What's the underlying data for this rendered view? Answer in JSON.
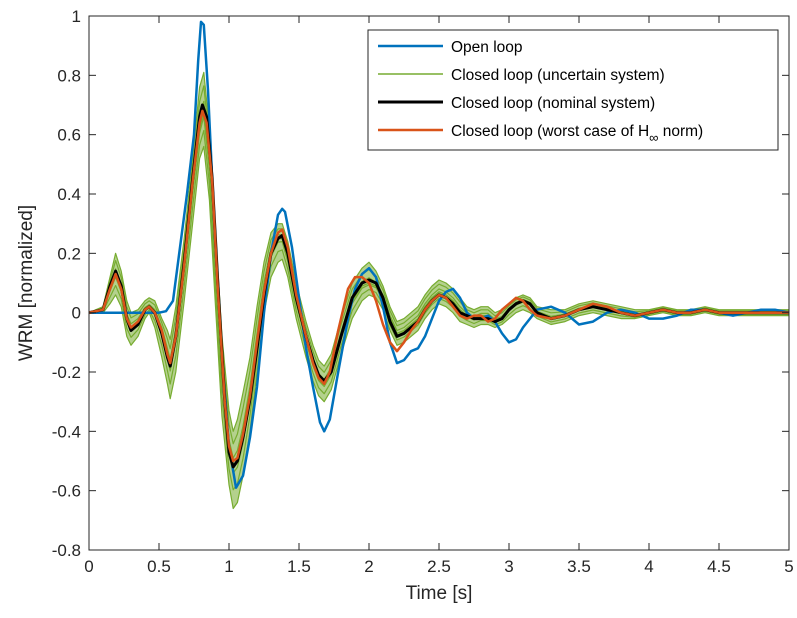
{
  "chart_data": {
    "type": "line",
    "title": "",
    "xlabel": "Time [s]",
    "ylabel": "WRM [normalized]",
    "xlim": [
      0,
      5
    ],
    "ylim": [
      -0.8,
      1
    ],
    "xticks": [
      "0",
      "0.5",
      "1",
      "1.5",
      "2",
      "2.5",
      "3",
      "3.5",
      "4",
      "4.5",
      "5"
    ],
    "yticks": [
      "-0.8",
      "-0.6",
      "-0.4",
      "-0.2",
      "0",
      "0.2",
      "0.4",
      "0.6",
      "0.8",
      "1"
    ],
    "grid": false,
    "legend_position": "top-right",
    "legend": [
      {
        "label": "Open loop",
        "color": "#0072BD",
        "width": 2.5
      },
      {
        "label": "Closed loop (uncertain system)",
        "color": "#77AC30",
        "width": 1.6
      },
      {
        "label": "Closed loop (nominal system)",
        "color": "#000000",
        "width": 3
      },
      {
        "label": "Closed loop (worst case of H",
        "sub": "∞",
        "suffix": " norm)",
        "color": "#D95319",
        "width": 2.5
      }
    ],
    "series": [
      {
        "name": "Open loop",
        "color": "#0072BD",
        "x": [
          0,
          0.3,
          0.5,
          0.55,
          0.6,
          0.65,
          0.7,
          0.75,
          0.78,
          0.8,
          0.82,
          0.85,
          0.88,
          0.9,
          0.95,
          1.0,
          1.05,
          1.1,
          1.15,
          1.2,
          1.25,
          1.3,
          1.35,
          1.38,
          1.4,
          1.45,
          1.5,
          1.55,
          1.6,
          1.65,
          1.68,
          1.72,
          1.78,
          1.85,
          1.9,
          1.95,
          2.0,
          2.05,
          2.1,
          2.15,
          2.2,
          2.25,
          2.3,
          2.35,
          2.4,
          2.45,
          2.5,
          2.55,
          2.6,
          2.65,
          2.7,
          2.75,
          2.8,
          2.85,
          2.9,
          2.95,
          3.0,
          3.05,
          3.1,
          3.15,
          3.2,
          3.3,
          3.4,
          3.5,
          3.6,
          3.7,
          3.8,
          3.9,
          4.0,
          4.1,
          4.2,
          4.3,
          4.4,
          4.5,
          4.6,
          4.7,
          4.8,
          4.9,
          5.0
        ],
        "y": [
          0,
          0,
          0,
          0.005,
          0.04,
          0.22,
          0.4,
          0.6,
          0.85,
          0.98,
          0.97,
          0.75,
          0.45,
          0.25,
          -0.15,
          -0.45,
          -0.59,
          -0.55,
          -0.42,
          -0.25,
          0,
          0.2,
          0.33,
          0.35,
          0.34,
          0.22,
          0.05,
          -0.12,
          -0.25,
          -0.37,
          -0.4,
          -0.36,
          -0.2,
          -0.02,
          0.08,
          0.13,
          0.15,
          0.12,
          0.02,
          -0.1,
          -0.17,
          -0.16,
          -0.13,
          -0.12,
          -0.08,
          -0.02,
          0.04,
          0.07,
          0.08,
          0.05,
          0,
          -0.02,
          -0.02,
          -0.01,
          -0.03,
          -0.07,
          -0.1,
          -0.09,
          -0.05,
          -0.02,
          0.01,
          0.02,
          0,
          -0.04,
          -0.03,
          0,
          0.01,
          0.0,
          -0.02,
          -0.02,
          -0.01,
          0.01,
          0.01,
          0.0,
          -0.01,
          0.0,
          0.01,
          0.01,
          0.0
        ]
      },
      {
        "name": "Closed loop (uncertain system)",
        "color": "#77AC30",
        "x": [
          0,
          0.1,
          0.15,
          0.19,
          0.23,
          0.27,
          0.3,
          0.35,
          0.4,
          0.43,
          0.47,
          0.52,
          0.56,
          0.58,
          0.62,
          0.68,
          0.74,
          0.79,
          0.82,
          0.86,
          0.9,
          0.95,
          1.0,
          1.03,
          1.06,
          1.1,
          1.15,
          1.2,
          1.25,
          1.3,
          1.35,
          1.38,
          1.42,
          1.48,
          1.55,
          1.6,
          1.64,
          1.68,
          1.73,
          1.8,
          1.88,
          1.95,
          2.0,
          2.05,
          2.1,
          2.15,
          2.2,
          2.25,
          2.3,
          2.35,
          2.4,
          2.45,
          2.5,
          2.55,
          2.6,
          2.65,
          2.7,
          2.75,
          2.8,
          2.85,
          2.9,
          2.95,
          3.0,
          3.05,
          3.1,
          3.15,
          3.2,
          3.3,
          3.4,
          3.5,
          3.6,
          3.7,
          3.8,
          3.9,
          4.0,
          4.1,
          4.2,
          4.3,
          4.4,
          4.5,
          4.6,
          4.7,
          4.8,
          4.9,
          5.0
        ],
        "y": [
          0,
          0.01,
          0.08,
          0.13,
          0.08,
          -0.02,
          -0.05,
          -0.03,
          0.01,
          0.02,
          0,
          -0.06,
          -0.14,
          -0.18,
          -0.08,
          0.15,
          0.42,
          0.62,
          0.68,
          0.5,
          0.18,
          -0.2,
          -0.46,
          -0.52,
          -0.5,
          -0.42,
          -0.28,
          -0.1,
          0.08,
          0.2,
          0.25,
          0.25,
          0.18,
          0.04,
          -0.09,
          -0.17,
          -0.22,
          -0.24,
          -0.2,
          -0.08,
          0.04,
          0.09,
          0.1,
          0.09,
          0.05,
          -0.02,
          -0.07,
          -0.06,
          -0.04,
          -0.02,
          0.02,
          0.05,
          0.07,
          0.06,
          0.04,
          0.01,
          -0.01,
          -0.02,
          -0.01,
          -0.01,
          -0.03,
          -0.02,
          0.01,
          0.03,
          0.04,
          0.03,
          0.0,
          -0.02,
          -0.01,
          0.01,
          0.02,
          0.01,
          0.0,
          -0.01,
          0.0,
          0.01,
          0.0,
          0.0,
          0.01,
          0.0,
          0.0,
          0.0,
          0.0,
          0.0,
          0.0
        ],
        "band": {
          "lower": [
            0,
            0.0,
            0.03,
            0.06,
            0.02,
            -0.08,
            -0.11,
            -0.08,
            -0.02,
            0.0,
            -0.05,
            -0.15,
            -0.24,
            -0.29,
            -0.2,
            0.04,
            0.3,
            0.52,
            0.56,
            0.38,
            0.05,
            -0.35,
            -0.58,
            -0.66,
            -0.64,
            -0.55,
            -0.4,
            -0.2,
            0.0,
            0.12,
            0.17,
            0.18,
            0.12,
            -0.02,
            -0.15,
            -0.23,
            -0.28,
            -0.3,
            -0.26,
            -0.14,
            -0.02,
            0.04,
            0.06,
            0.05,
            0.01,
            -0.06,
            -0.11,
            -0.1,
            -0.08,
            -0.06,
            -0.02,
            0.01,
            0.03,
            0.02,
            0.0,
            -0.03,
            -0.04,
            -0.05,
            -0.04,
            -0.04,
            -0.05,
            -0.04,
            -0.02,
            0.0,
            0.01,
            0.0,
            -0.02,
            -0.04,
            -0.03,
            -0.01,
            0.0,
            -0.01,
            -0.02,
            -0.02,
            -0.01,
            0.0,
            -0.01,
            -0.01,
            0.0,
            -0.01,
            -0.01,
            -0.01,
            -0.01,
            -0.01,
            -0.01
          ],
          "upper": [
            0,
            0.02,
            0.12,
            0.2,
            0.14,
            0.04,
            0.0,
            0.01,
            0.04,
            0.05,
            0.04,
            -0.02,
            -0.06,
            -0.09,
            0.02,
            0.25,
            0.52,
            0.76,
            0.81,
            0.62,
            0.3,
            -0.08,
            -0.33,
            -0.4,
            -0.36,
            -0.27,
            -0.15,
            0.02,
            0.17,
            0.27,
            0.3,
            0.3,
            0.24,
            0.1,
            -0.03,
            -0.11,
            -0.16,
            -0.18,
            -0.14,
            -0.02,
            0.1,
            0.15,
            0.17,
            0.14,
            0.09,
            0.02,
            -0.03,
            -0.02,
            0.0,
            0.02,
            0.06,
            0.09,
            0.11,
            0.1,
            0.08,
            0.05,
            0.02,
            0.01,
            0.02,
            0.02,
            0.0,
            0.01,
            0.03,
            0.05,
            0.06,
            0.05,
            0.02,
            0.01,
            0.01,
            0.03,
            0.04,
            0.03,
            0.02,
            0.01,
            0.01,
            0.02,
            0.01,
            0.01,
            0.02,
            0.01,
            0.01,
            0.01,
            0.01,
            0.01,
            0.01
          ]
        }
      },
      {
        "name": "Closed loop (nominal system)",
        "color": "#000000",
        "x": [
          0,
          0.1,
          0.15,
          0.19,
          0.23,
          0.27,
          0.3,
          0.35,
          0.4,
          0.43,
          0.47,
          0.52,
          0.56,
          0.58,
          0.62,
          0.68,
          0.74,
          0.79,
          0.81,
          0.84,
          0.88,
          0.92,
          0.97,
          1.0,
          1.03,
          1.06,
          1.1,
          1.15,
          1.2,
          1.25,
          1.3,
          1.35,
          1.38,
          1.42,
          1.48,
          1.55,
          1.6,
          1.64,
          1.68,
          1.73,
          1.8,
          1.88,
          1.95,
          2.0,
          2.05,
          2.1,
          2.15,
          2.2,
          2.25,
          2.3,
          2.35,
          2.4,
          2.45,
          2.5,
          2.55,
          2.6,
          2.65,
          2.7,
          2.75,
          2.8,
          2.85,
          2.9,
          2.95,
          3.0,
          3.05,
          3.1,
          3.15,
          3.2,
          3.3,
          3.4,
          3.5,
          3.6,
          3.7,
          3.8,
          3.9,
          4.0,
          4.1,
          4.2,
          4.3,
          4.4,
          4.5,
          4.6,
          4.7,
          4.8,
          4.9,
          5.0
        ],
        "y": [
          0,
          0.01,
          0.09,
          0.14,
          0.09,
          -0.02,
          -0.06,
          -0.04,
          0.01,
          0.02,
          0.0,
          -0.07,
          -0.15,
          -0.18,
          -0.08,
          0.17,
          0.45,
          0.66,
          0.7,
          0.66,
          0.45,
          0.1,
          -0.3,
          -0.47,
          -0.52,
          -0.5,
          -0.42,
          -0.29,
          -0.12,
          0.06,
          0.2,
          0.25,
          0.26,
          0.2,
          0.05,
          -0.08,
          -0.16,
          -0.21,
          -0.23,
          -0.2,
          -0.08,
          0.05,
          0.1,
          0.11,
          0.1,
          0.05,
          -0.03,
          -0.08,
          -0.07,
          -0.05,
          -0.03,
          0.01,
          0.04,
          0.06,
          0.05,
          0.03,
          0.0,
          -0.01,
          -0.02,
          -0.02,
          -0.02,
          -0.03,
          -0.02,
          0.01,
          0.03,
          0.04,
          0.03,
          0.0,
          -0.02,
          -0.01,
          0.01,
          0.02,
          0.01,
          0.0,
          -0.01,
          0.0,
          0.01,
          0.0,
          0.0,
          0.01,
          0.0,
          0.0,
          0.0,
          0.0,
          0.0,
          0.0
        ]
      },
      {
        "name": "Closed loop (worst case of H∞ norm)",
        "color": "#D95319",
        "x": [
          0,
          0.1,
          0.15,
          0.19,
          0.23,
          0.27,
          0.3,
          0.35,
          0.4,
          0.43,
          0.47,
          0.52,
          0.56,
          0.58,
          0.62,
          0.68,
          0.74,
          0.79,
          0.81,
          0.84,
          0.88,
          0.92,
          0.97,
          1.0,
          1.03,
          1.06,
          1.1,
          1.15,
          1.2,
          1.25,
          1.3,
          1.35,
          1.38,
          1.42,
          1.48,
          1.55,
          1.6,
          1.64,
          1.68,
          1.72,
          1.78,
          1.85,
          1.9,
          1.95,
          2.0,
          2.05,
          2.1,
          2.15,
          2.2,
          2.25,
          2.3,
          2.35,
          2.4,
          2.45,
          2.5,
          2.55,
          2.6,
          2.65,
          2.7,
          2.75,
          2.8,
          2.85,
          2.9,
          2.95,
          3.0,
          3.05,
          3.1,
          3.15,
          3.2,
          3.3,
          3.4,
          3.5,
          3.6,
          3.7,
          3.8,
          3.9,
          4.0,
          4.1,
          4.2,
          4.3,
          4.4,
          4.5,
          4.6,
          4.7,
          4.8,
          4.9,
          5.0
        ],
        "y": [
          0,
          0.01,
          0.08,
          0.13,
          0.08,
          -0.02,
          -0.05,
          -0.03,
          0.01,
          0.02,
          0.0,
          -0.06,
          -0.14,
          -0.17,
          -0.08,
          0.16,
          0.44,
          0.64,
          0.68,
          0.64,
          0.44,
          0.08,
          -0.3,
          -0.45,
          -0.5,
          -0.49,
          -0.41,
          -0.28,
          -0.1,
          0.07,
          0.2,
          0.27,
          0.28,
          0.22,
          0.06,
          -0.08,
          -0.17,
          -0.22,
          -0.24,
          -0.2,
          -0.06,
          0.08,
          0.12,
          0.12,
          0.1,
          0.04,
          -0.04,
          -0.1,
          -0.13,
          -0.1,
          -0.06,
          -0.03,
          0.01,
          0.04,
          0.06,
          0.05,
          0.02,
          -0.01,
          -0.02,
          -0.01,
          -0.01,
          -0.03,
          -0.02,
          0.01,
          0.03,
          0.05,
          0.04,
          0.01,
          -0.01,
          -0.02,
          -0.01,
          0.01,
          0.03,
          0.02,
          0.0,
          -0.01,
          0.0,
          0.01,
          0.0,
          0.0,
          0.01,
          0.0,
          0.0,
          0.0,
          0.0,
          0.0,
          0.0
        ]
      }
    ]
  }
}
